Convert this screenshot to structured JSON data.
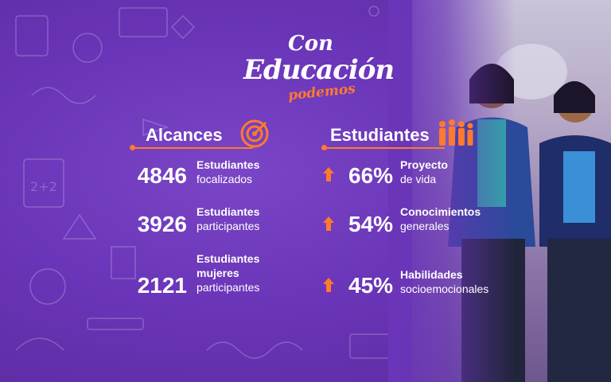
{
  "logo": {
    "line1": "Con",
    "line2": "Educación",
    "line3": "podemos"
  },
  "colors": {
    "accent": "#ff7a2e",
    "background": "#6a35b8",
    "text": "#ffffff"
  },
  "alcances": {
    "title": "Alcances",
    "icon": "target-icon",
    "items": [
      {
        "value": "4846",
        "label_bold": "Estudiantes",
        "label_rest": "focalizados"
      },
      {
        "value": "3926",
        "label_bold": "Estudiantes",
        "label_rest": "participantes"
      },
      {
        "value": "2121",
        "label_bold": "Estudiantes mujeres",
        "label_rest": "participantes"
      }
    ]
  },
  "estudiantes": {
    "title": "Estudiantes",
    "icon": "students-group-icon",
    "items": [
      {
        "value": "66%",
        "label_bold": "Proyecto",
        "label_rest": "de vida",
        "icon": "arrow-up-icon"
      },
      {
        "value": "54%",
        "label_bold": "Conocimientos",
        "label_rest": "generales",
        "icon": "arrow-up-icon"
      },
      {
        "value": "45%",
        "label_bold": "Habilidades",
        "label_rest": "socioemocionales",
        "icon": "arrow-up-icon"
      }
    ]
  }
}
